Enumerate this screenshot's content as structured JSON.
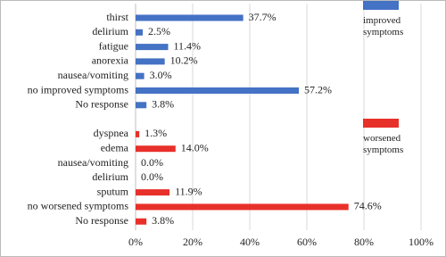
{
  "chart_data": {
    "type": "barh",
    "categories": [
      "thirst",
      "delirium",
      "fatigue",
      "anorexia",
      "nausea/vomiting",
      "no improved symptoms",
      "No response",
      null,
      "dyspnea",
      "edema",
      "nausea/vomiting",
      "delirium",
      "sputum",
      "no worsened symptoms",
      "No response"
    ],
    "series": [
      {
        "name": "improved symptoms",
        "color": "#4472c4",
        "values": [
          37.7,
          2.5,
          11.4,
          10.2,
          3.0,
          57.2,
          3.8,
          null,
          null,
          null,
          null,
          null,
          null,
          null,
          null
        ],
        "value_labels": [
          "37.7%",
          "2.5%",
          "11.4%",
          "10.2%",
          "3.0%",
          "57.2%",
          "3.8%",
          null,
          null,
          null,
          null,
          null,
          null,
          null,
          null
        ]
      },
      {
        "name": "worsened symptoms",
        "color": "#e8302a",
        "values": [
          null,
          null,
          null,
          null,
          null,
          null,
          null,
          null,
          1.3,
          14.0,
          0.0,
          0.0,
          11.9,
          74.6,
          3.8
        ],
        "value_labels": [
          null,
          null,
          null,
          null,
          null,
          null,
          null,
          null,
          "1.3%",
          "14.0%",
          "0.0%",
          "0.0%",
          "11.9%",
          "74.6%",
          "3.8%"
        ]
      }
    ],
    "xlim": [
      0,
      100
    ],
    "xticks": [
      {
        "value": 0,
        "label": "0%"
      },
      {
        "value": 20,
        "label": "20%"
      },
      {
        "value": 40,
        "label": "40%"
      },
      {
        "value": 60,
        "label": "60%"
      },
      {
        "value": 80,
        "label": "80%"
      },
      {
        "value": 100,
        "label": "100%"
      }
    ],
    "grid": true,
    "legend": "right"
  }
}
